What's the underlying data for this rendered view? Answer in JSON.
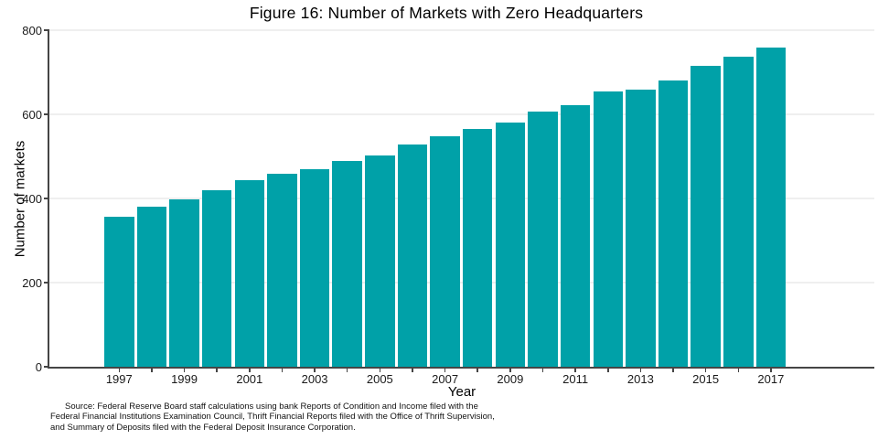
{
  "title": "Figure 16: Number of Markets with Zero Headquarters",
  "chart_data": {
    "type": "bar",
    "title": "Figure 16: Number of Markets with Zero Headquarters",
    "categories": [
      1997,
      1998,
      1999,
      2000,
      2001,
      2002,
      2003,
      2004,
      2005,
      2006,
      2007,
      2008,
      2009,
      2010,
      2011,
      2012,
      2013,
      2014,
      2015,
      2016,
      2017
    ],
    "values": [
      356,
      381,
      398,
      419,
      443,
      458,
      470,
      490,
      502,
      528,
      548,
      565,
      581,
      606,
      622,
      655,
      658,
      681,
      716,
      738,
      758
    ],
    "xlabel": "Year",
    "ylabel": "Number of markets",
    "ylim": [
      0,
      800
    ],
    "yticks": [
      0,
      200,
      400,
      600,
      800
    ],
    "xtick_labeled_years": [
      1997,
      1999,
      2001,
      2003,
      2005,
      2007,
      2009,
      2011,
      2013,
      2015,
      2017
    ],
    "grid": "horizontal-major",
    "legend": "none",
    "bar_color": "#00a1a8"
  },
  "colors": {
    "bar": "#00a1a8",
    "axis": "#454545",
    "grid": "#efefef",
    "text": "#111111"
  },
  "source_note": {
    "line1": "Source: Federal Reserve Board staff calculations using bank Reports of Condition and Income filed with the",
    "line2": "Federal Financial Institutions Examination Council, Thrift Financial Reports filed with the Office of Thrift Supervision,",
    "line3": "and Summary of Deposits filed with the Federal Deposit Insurance Corporation."
  }
}
